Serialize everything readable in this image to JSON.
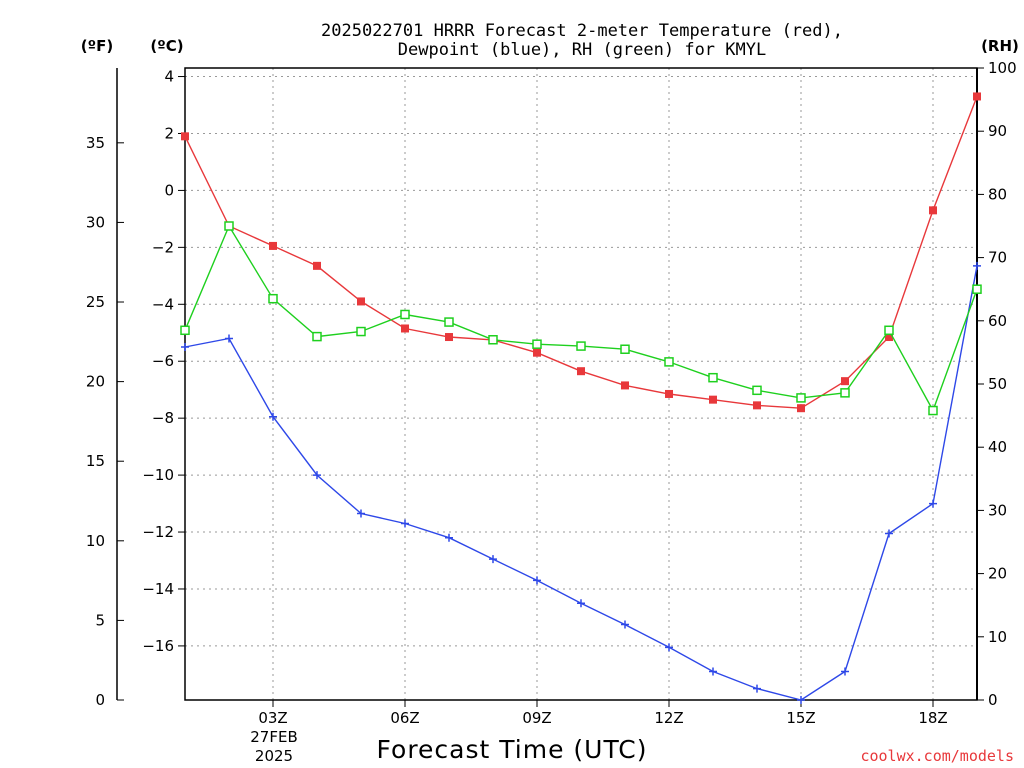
{
  "title_line1": "2025022701 HRRR Forecast 2-meter Temperature (red),",
  "title_line2": "Dewpoint (blue), RH (green) for KMYL",
  "unit_f": "(ºF)",
  "unit_c": "(ºC)",
  "unit_rh": "(RH)",
  "xlabel": "Forecast Time (UTC)",
  "date_label_day": "27FEB",
  "date_label_year": "2025",
  "credit": "coolwx.com/models",
  "colors": {
    "temperature": "#e8383b",
    "dewpoint": "#2e48e8",
    "rh": "#1ed01e",
    "credit": "#e8383b"
  },
  "chart_data": {
    "type": "line",
    "title": "2025022701 HRRR Forecast 2-meter Temperature (red), Dewpoint (blue), RH (green) for KMYL",
    "xlabel": "Forecast Time (UTC)",
    "x_hours": [
      1,
      2,
      3,
      4,
      5,
      6,
      7,
      8,
      9,
      10,
      11,
      12,
      13,
      14,
      15,
      16,
      17,
      18,
      19
    ],
    "x_ticks": [
      {
        "hour": 3,
        "label": "03Z"
      },
      {
        "hour": 6,
        "label": "06Z"
      },
      {
        "hour": 9,
        "label": "09Z"
      },
      {
        "hour": 12,
        "label": "12Z"
      },
      {
        "hour": 15,
        "label": "15Z"
      },
      {
        "hour": 18,
        "label": "18Z"
      }
    ],
    "xlim": [
      1,
      19
    ],
    "y_left_celsius": {
      "ylim": [
        -17.9,
        4.3
      ],
      "ticks": [
        4,
        2,
        0,
        -2,
        -4,
        -6,
        -8,
        -10,
        -12,
        -14,
        -16
      ]
    },
    "y_left_fahrenheit": {
      "ylim": [
        0,
        39.7
      ],
      "ticks": [
        35,
        30,
        25,
        20,
        15,
        10,
        5,
        0
      ]
    },
    "y_right_rh": {
      "ylim": [
        0,
        100
      ],
      "ticks": [
        100,
        90,
        80,
        70,
        60,
        50,
        40,
        30,
        20,
        10,
        0
      ]
    },
    "grid": true,
    "series": [
      {
        "name": "Temperature",
        "axis": "celsius",
        "marker": "filled-square",
        "values": [
          1.9,
          -1.25,
          -1.95,
          -2.65,
          -3.9,
          -4.85,
          -5.15,
          -5.25,
          -5.7,
          -6.35,
          -6.85,
          -7.15,
          -7.35,
          -7.55,
          -7.65,
          -6.7,
          -5.15,
          -0.7,
          3.3
        ]
      },
      {
        "name": "Dewpoint",
        "axis": "celsius",
        "marker": "plus",
        "values": [
          -5.5,
          -5.2,
          -7.95,
          -10.0,
          -11.35,
          -11.7,
          -12.2,
          -12.95,
          -13.7,
          -14.5,
          -15.25,
          -16.05,
          -16.9,
          -17.5,
          -17.9,
          -16.9,
          -12.05,
          -11.0,
          -2.65
        ]
      },
      {
        "name": "RH",
        "axis": "rh",
        "marker": "open-square",
        "values": [
          58.5,
          75,
          63.5,
          57.5,
          58.3,
          61,
          59.8,
          57,
          56.3,
          56,
          55.5,
          53.5,
          51,
          49,
          47.8,
          48.6,
          58.5,
          45.8,
          65
        ]
      }
    ]
  }
}
